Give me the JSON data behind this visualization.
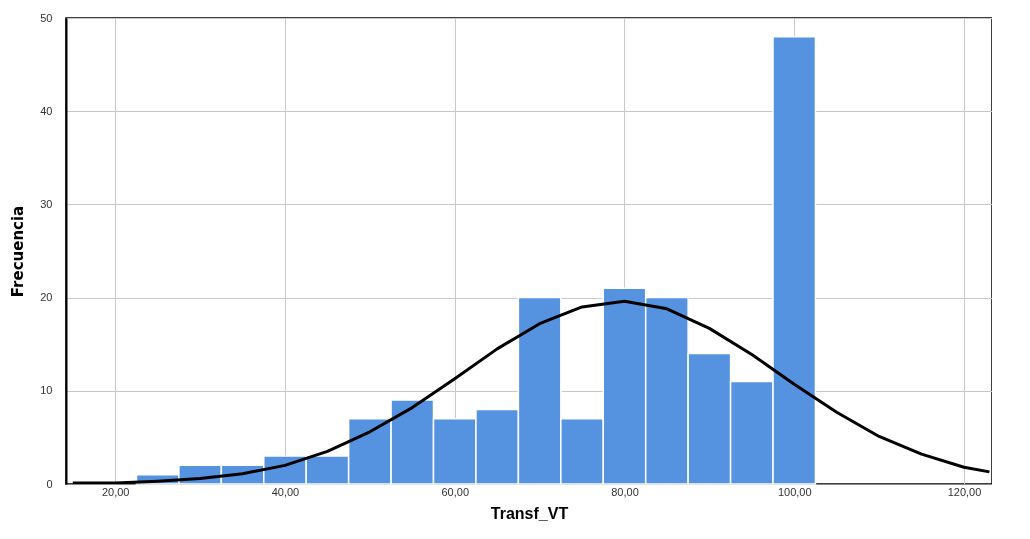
{
  "chart_data": {
    "type": "histogram",
    "xlabel": "Transf_VT",
    "ylabel": "Frecuencia",
    "xlim": [
      14.2,
      123.3
    ],
    "ylim": [
      0,
      50
    ],
    "xticks": [
      {
        "value": 20,
        "label": "20,00"
      },
      {
        "value": 40,
        "label": "40,00"
      },
      {
        "value": 60,
        "label": "60,00"
      },
      {
        "value": 80,
        "label": "80,00"
      },
      {
        "value": 100,
        "label": "100,00"
      },
      {
        "value": 120,
        "label": "120,00"
      }
    ],
    "yticks": [
      0,
      10,
      20,
      30,
      40,
      50
    ],
    "grid": true,
    "series": [
      {
        "color": "#5592e0",
        "bins": [
          22.5,
          27.5,
          32.5,
          37.5,
          42.5,
          47.5,
          52.5,
          57.5,
          62.5,
          67.5,
          72.5,
          77.5,
          82.5,
          87.5,
          92.5,
          97.5,
          102.5
        ],
        "values": [
          1,
          2,
          2,
          3,
          3,
          7,
          9,
          7,
          8,
          20,
          7,
          21,
          20,
          14,
          11,
          48
        ]
      },
      {
        "type": "line",
        "color": "#000000",
        "x": [
          15,
          20,
          25,
          30,
          35,
          40,
          45,
          50,
          55,
          60,
          65,
          70,
          75,
          80,
          85,
          90,
          95,
          100,
          105,
          110,
          115,
          120,
          123
        ],
        "values": [
          0.1,
          0.1,
          0.3,
          0.6,
          1.1,
          2.0,
          3.5,
          5.6,
          8.2,
          11.3,
          14.5,
          17.2,
          19.0,
          19.6,
          18.8,
          16.7,
          13.9,
          10.7,
          7.7,
          5.1,
          3.2,
          1.8,
          1.3
        ]
      }
    ]
  }
}
